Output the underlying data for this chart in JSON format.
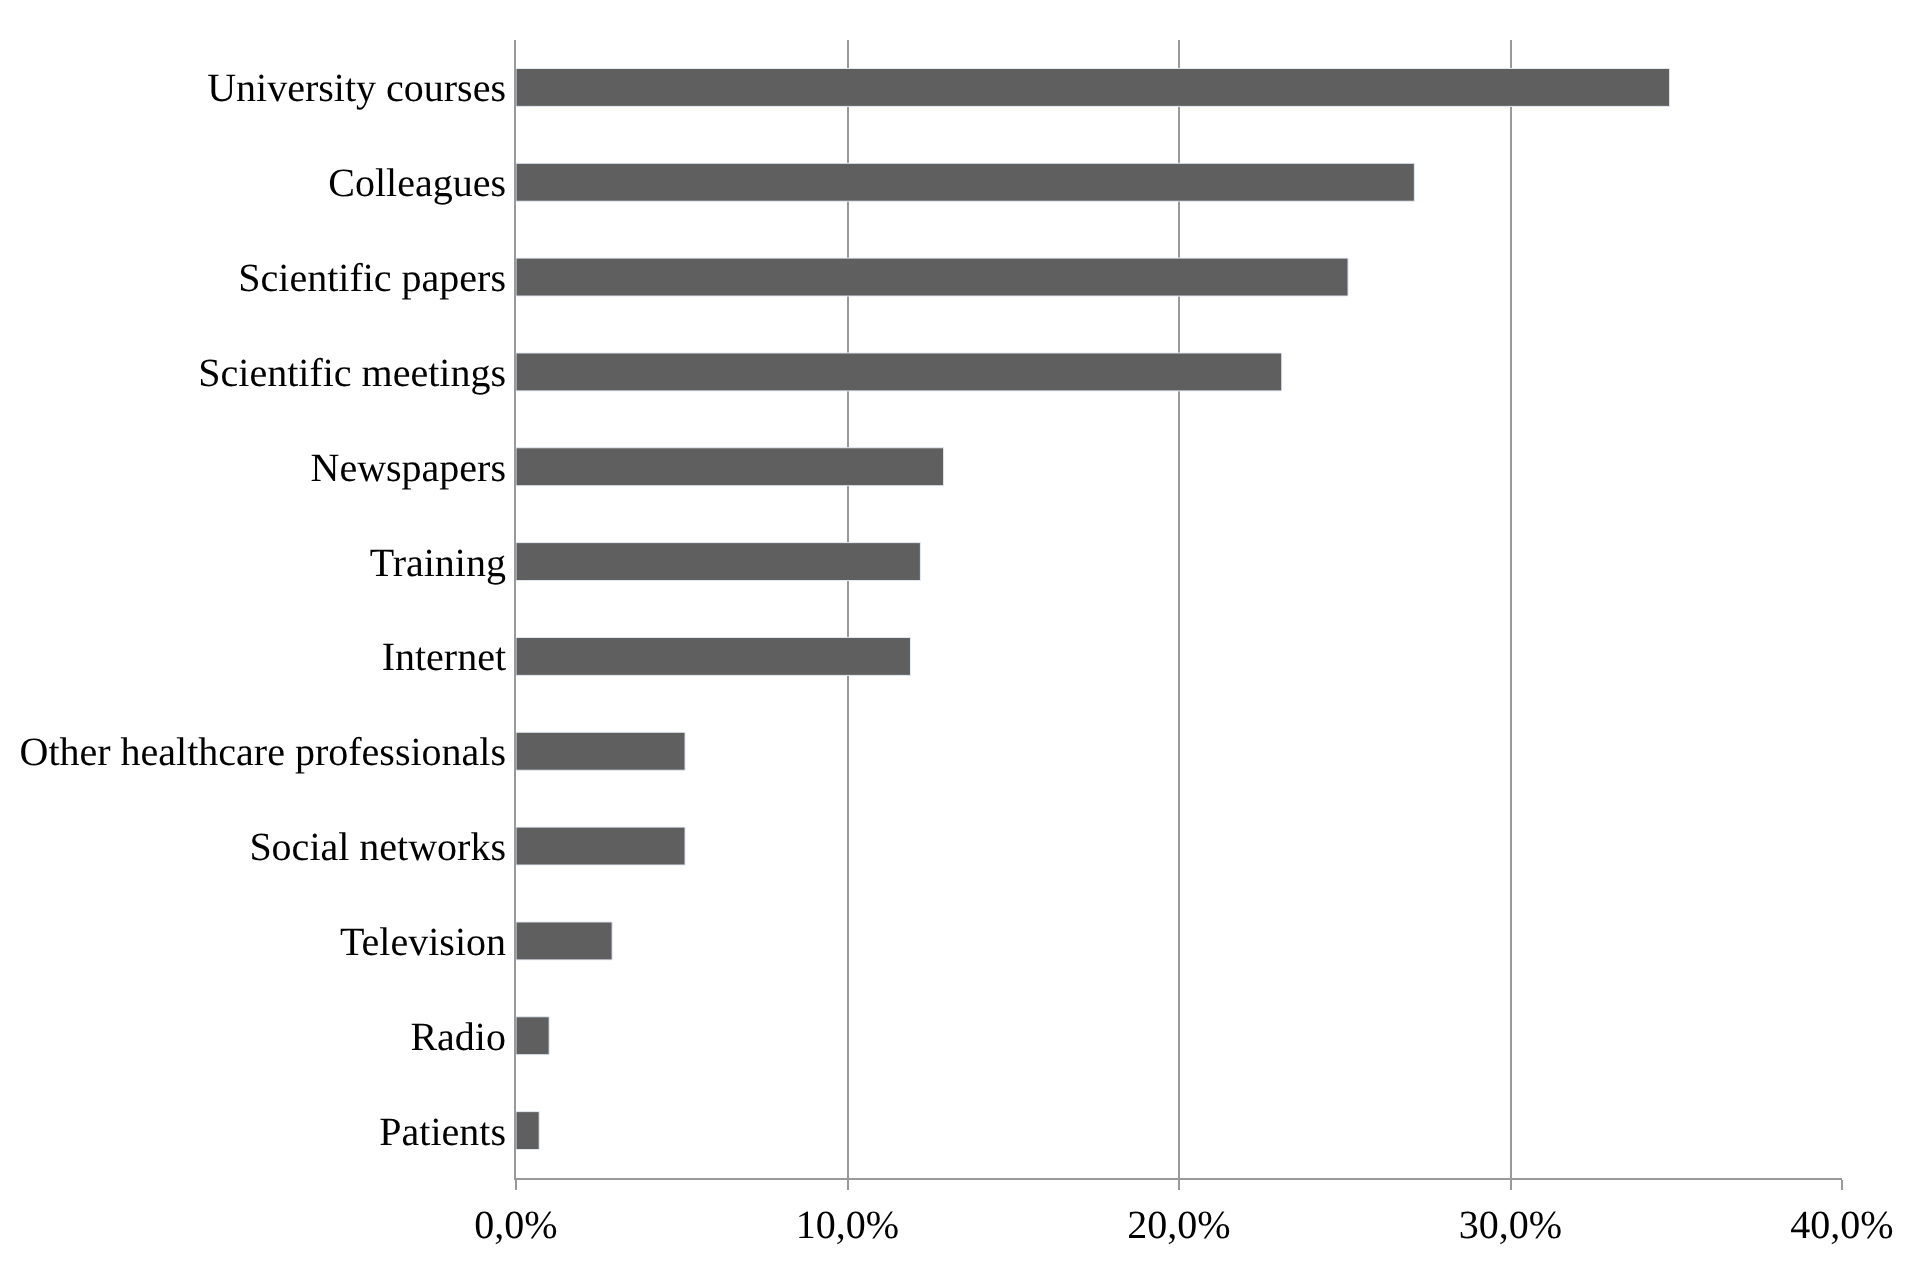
{
  "chart_data": {
    "type": "bar",
    "orientation": "horizontal",
    "categories": [
      "University courses",
      "Colleagues",
      "Scientific papers",
      "Scientific meetings",
      "Newspapers",
      "Training",
      "Internet",
      "Other healthcare professionals",
      "Social networks",
      "Television",
      "Radio",
      "Patients"
    ],
    "values": [
      34.8,
      27.1,
      25.1,
      23.1,
      12.9,
      12.2,
      11.9,
      5.1,
      5.1,
      2.9,
      1.0,
      0.7
    ],
    "color": "#5f5f5f",
    "xlim": [
      0,
      40
    ],
    "xticks": [
      {
        "value": 0,
        "label": "0,0%"
      },
      {
        "value": 10,
        "label": "10,0%"
      },
      {
        "value": 20,
        "label": "20,0%"
      },
      {
        "value": 30,
        "label": "30,0%"
      },
      {
        "value": 40,
        "label": "40,0%"
      }
    ],
    "grid": "x"
  }
}
